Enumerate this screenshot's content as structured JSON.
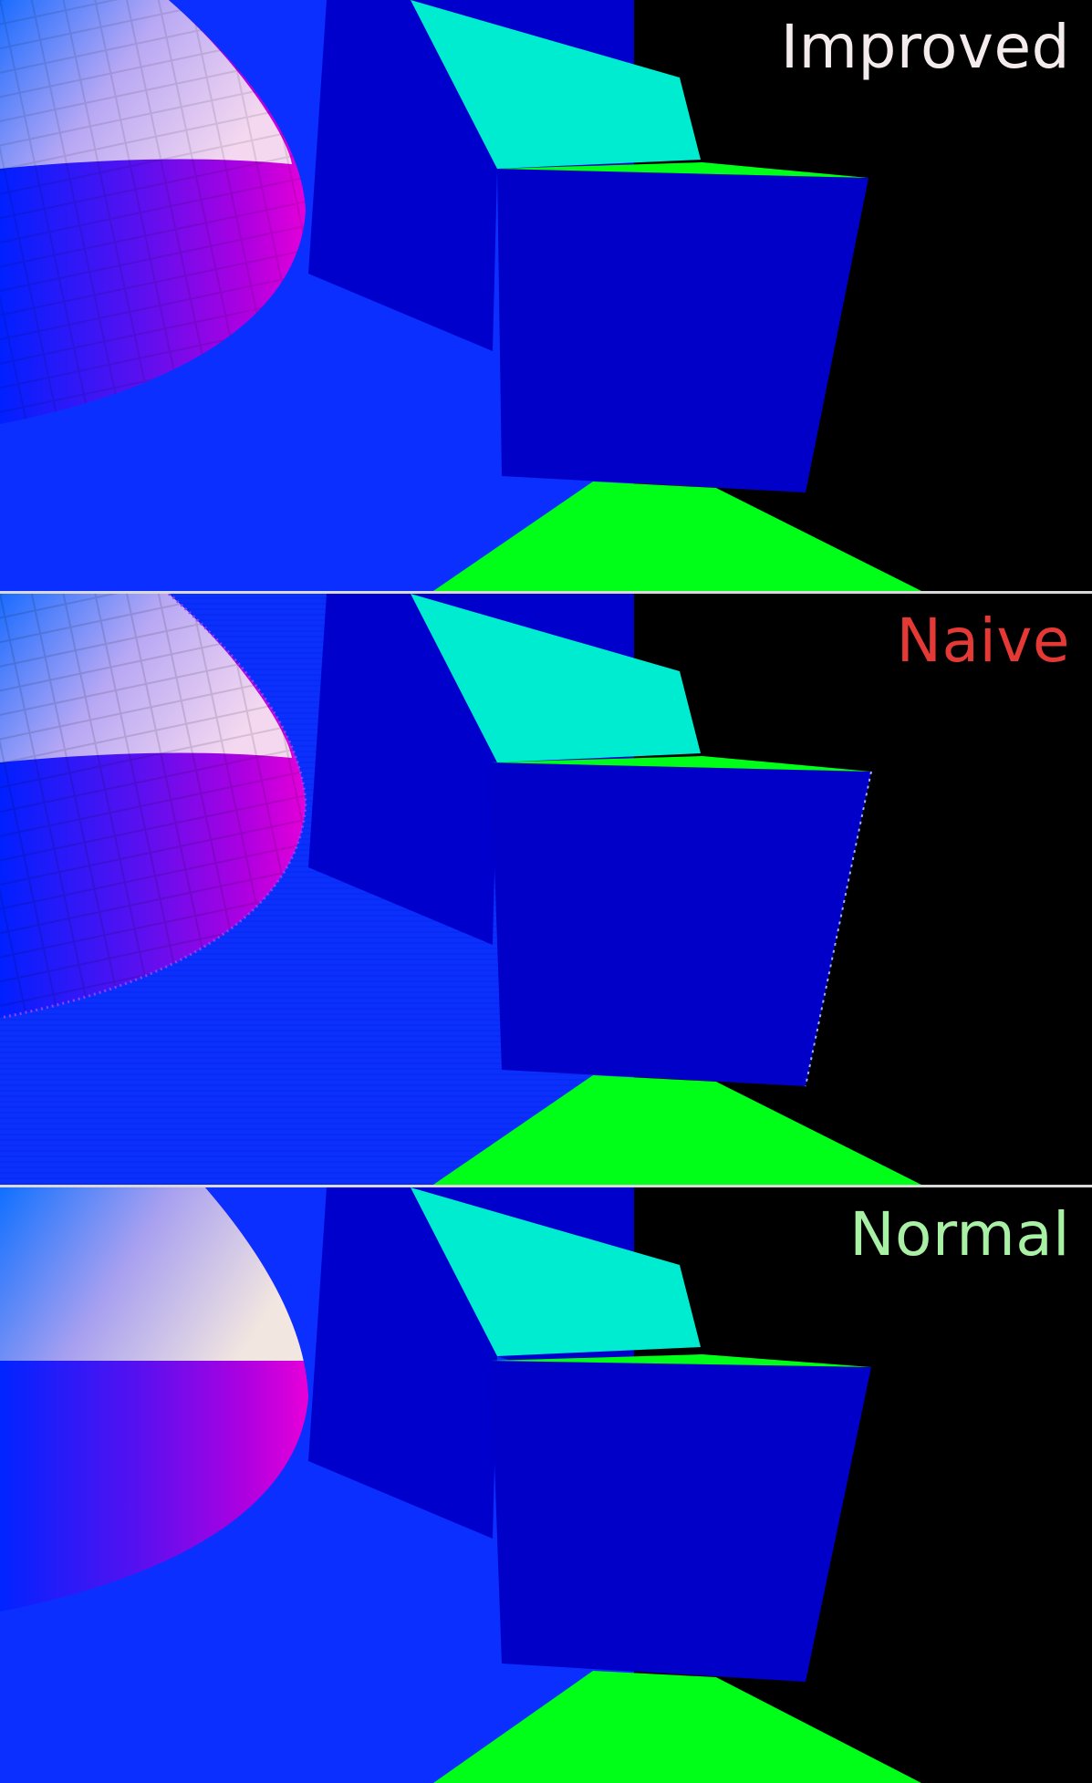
{
  "panels": [
    {
      "key": "improved",
      "label": "Improved",
      "label_color": "#f4ecec",
      "shading": "stepped"
    },
    {
      "key": "naive",
      "label": "Naive",
      "label_color": "#e53935",
      "shading": "stepped-jagged"
    },
    {
      "key": "normal",
      "label": "Normal",
      "label_color": "#a8f0a4",
      "shading": "smooth"
    }
  ],
  "colors": {
    "background": "#000000",
    "floor": "#0a2fff",
    "back_wall": "#0000cc",
    "box_front": "#0000c8",
    "box_top": "#00ecd0",
    "ground_strip": "#00ff18",
    "sphere_left": "#0033ff",
    "sphere_right": "#e000d8",
    "sphere_top": "#f0ece0",
    "divider": "#d9d9d9"
  }
}
